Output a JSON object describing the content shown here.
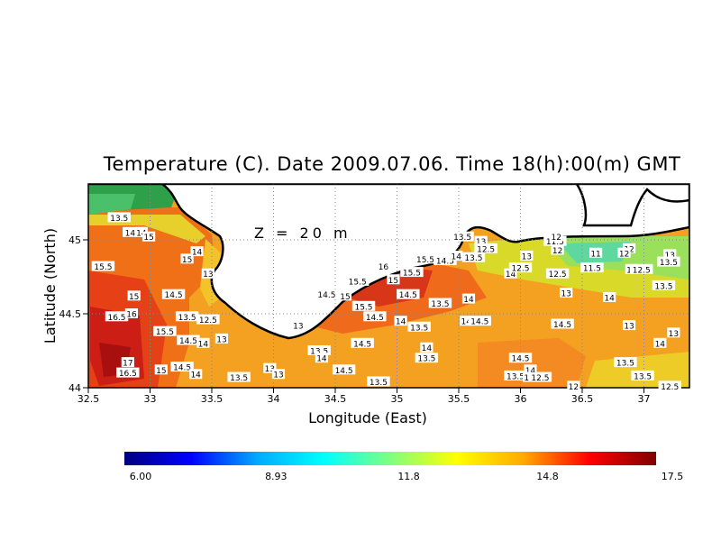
{
  "title": "Temperature (C). Date 2009.07.06. Time 18(h):00(m) GMT",
  "depth_label": "Z = 20 m",
  "axes": {
    "xlabel": "Longitude (East)",
    "ylabel": "Latitude (North)",
    "x_ticks": [
      "32.5",
      "33",
      "33.5",
      "34",
      "34.5",
      "35",
      "35.5",
      "36",
      "36.5",
      "37"
    ],
    "y_ticks": [
      "44",
      "44.5",
      "45"
    ]
  },
  "colorbar": {
    "min": 6.0,
    "max": 17.5,
    "labels": [
      "6.00",
      "8.93",
      "11.8",
      "14.8",
      "17.5"
    ],
    "colors": [
      "#00007f",
      "#0000ff",
      "#00aaff",
      "#00ffff",
      "#7fff7f",
      "#ffff00",
      "#ffaa00",
      "#ff0000",
      "#7f0000"
    ]
  },
  "contour_labels": [
    {
      "t": "13.5",
      "lon": 32.75,
      "lat": 45.15
    },
    {
      "t": "14.5",
      "lon": 32.87,
      "lat": 45.05
    },
    {
      "t": "14",
      "lon": 32.93,
      "lat": 45.05
    },
    {
      "t": "15",
      "lon": 32.99,
      "lat": 45.02
    },
    {
      "t": "15.5",
      "lon": 32.62,
      "lat": 44.82
    },
    {
      "t": "15",
      "lon": 33.3,
      "lat": 44.87
    },
    {
      "t": "14",
      "lon": 33.38,
      "lat": 44.92
    },
    {
      "t": "15",
      "lon": 32.87,
      "lat": 44.62
    },
    {
      "t": "16.5",
      "lon": 32.73,
      "lat": 44.48
    },
    {
      "t": "16",
      "lon": 32.85,
      "lat": 44.5
    },
    {
      "t": "14.5",
      "lon": 33.19,
      "lat": 44.63
    },
    {
      "t": "13.5",
      "lon": 33.3,
      "lat": 44.48
    },
    {
      "t": "12.5",
      "lon": 33.47,
      "lat": 44.46
    },
    {
      "t": "15.5",
      "lon": 33.12,
      "lat": 44.38
    },
    {
      "t": "14.5",
      "lon": 33.31,
      "lat": 44.32
    },
    {
      "t": "14",
      "lon": 33.43,
      "lat": 44.3
    },
    {
      "t": "13",
      "lon": 33.58,
      "lat": 44.33
    },
    {
      "t": "17",
      "lon": 32.82,
      "lat": 44.17
    },
    {
      "t": "16.5",
      "lon": 32.82,
      "lat": 44.1
    },
    {
      "t": "15",
      "lon": 33.09,
      "lat": 44.12
    },
    {
      "t": "14.5",
      "lon": 33.26,
      "lat": 44.14
    },
    {
      "t": "14",
      "lon": 33.37,
      "lat": 44.09
    },
    {
      "t": "13.5",
      "lon": 33.72,
      "lat": 44.07
    },
    {
      "t": "13",
      "lon": 33.97,
      "lat": 44.13
    },
    {
      "t": "13",
      "lon": 34.04,
      "lat": 44.09
    },
    {
      "t": "13",
      "lon": 33.47,
      "lat": 44.77
    },
    {
      "t": "13",
      "lon": 34.2,
      "lat": 44.42
    },
    {
      "t": "13.5",
      "lon": 34.37,
      "lat": 44.25
    },
    {
      "t": "14",
      "lon": 34.39,
      "lat": 44.2
    },
    {
      "t": "14.5",
      "lon": 34.57,
      "lat": 44.12
    },
    {
      "t": "13.5",
      "lon": 34.85,
      "lat": 44.04
    },
    {
      "t": "14.5",
      "lon": 34.43,
      "lat": 44.63
    },
    {
      "t": "15",
      "lon": 34.58,
      "lat": 44.62
    },
    {
      "t": "15.5",
      "lon": 34.68,
      "lat": 44.72
    },
    {
      "t": "16",
      "lon": 34.89,
      "lat": 44.82
    },
    {
      "t": "15.5",
      "lon": 34.73,
      "lat": 44.55
    },
    {
      "t": "14.5",
      "lon": 34.82,
      "lat": 44.48
    },
    {
      "t": "15",
      "lon": 34.97,
      "lat": 44.73
    },
    {
      "t": "14.5",
      "lon": 35.09,
      "lat": 44.63
    },
    {
      "t": "14",
      "lon": 35.03,
      "lat": 44.45
    },
    {
      "t": "13.5",
      "lon": 35.18,
      "lat": 44.41
    },
    {
      "t": "14.5",
      "lon": 34.72,
      "lat": 44.3
    },
    {
      "t": "15.5",
      "lon": 35.12,
      "lat": 44.78
    },
    {
      "t": "15.5",
      "lon": 35.23,
      "lat": 44.87
    },
    {
      "t": "14.5",
      "lon": 35.39,
      "lat": 44.86
    },
    {
      "t": "14",
      "lon": 35.48,
      "lat": 44.89
    },
    {
      "t": "13.5",
      "lon": 35.62,
      "lat": 44.88
    },
    {
      "t": "13.5",
      "lon": 35.35,
      "lat": 44.57
    },
    {
      "t": "14",
      "lon": 35.58,
      "lat": 44.6
    },
    {
      "t": "14",
      "lon": 35.56,
      "lat": 44.45
    },
    {
      "t": "14.5",
      "lon": 35.67,
      "lat": 44.45
    },
    {
      "t": "14",
      "lon": 35.24,
      "lat": 44.27
    },
    {
      "t": "13.5",
      "lon": 35.24,
      "lat": 44.2
    },
    {
      "t": "13.5",
      "lon": 35.53,
      "lat": 45.02
    },
    {
      "t": "13",
      "lon": 35.68,
      "lat": 44.99
    },
    {
      "t": "12.5",
      "lon": 35.72,
      "lat": 44.94
    },
    {
      "t": "13",
      "lon": 36.05,
      "lat": 44.89
    },
    {
      "t": "14",
      "lon": 35.92,
      "lat": 44.77
    },
    {
      "t": "12.5",
      "lon": 36.0,
      "lat": 44.81
    },
    {
      "t": "12.5",
      "lon": 36.3,
      "lat": 44.77
    },
    {
      "t": "13",
      "lon": 36.37,
      "lat": 44.64
    },
    {
      "t": "11.5",
      "lon": 36.28,
      "lat": 44.99
    },
    {
      "t": "12",
      "lon": 36.29,
      "lat": 45.02
    },
    {
      "t": "12",
      "lon": 36.3,
      "lat": 44.93
    },
    {
      "t": "11",
      "lon": 36.61,
      "lat": 44.91
    },
    {
      "t": "11.5",
      "lon": 36.58,
      "lat": 44.81
    },
    {
      "t": "12",
      "lon": 36.88,
      "lat": 44.94
    },
    {
      "t": "12",
      "lon": 36.84,
      "lat": 44.91
    },
    {
      "t": "11",
      "lon": 36.9,
      "lat": 44.8
    },
    {
      "t": "12.5",
      "lon": 36.98,
      "lat": 44.8
    },
    {
      "t": "13",
      "lon": 37.21,
      "lat": 44.9
    },
    {
      "t": "13.5",
      "lon": 37.2,
      "lat": 44.85
    },
    {
      "t": "13.5",
      "lon": 37.16,
      "lat": 44.69
    },
    {
      "t": "14",
      "lon": 36.72,
      "lat": 44.61
    },
    {
      "t": "13",
      "lon": 36.88,
      "lat": 44.42
    },
    {
      "t": "14.5",
      "lon": 36.34,
      "lat": 44.43
    },
    {
      "t": "14",
      "lon": 37.13,
      "lat": 44.3
    },
    {
      "t": "13",
      "lon": 37.24,
      "lat": 44.37
    },
    {
      "t": "14.5",
      "lon": 36.0,
      "lat": 44.2
    },
    {
      "t": "14",
      "lon": 36.08,
      "lat": 44.12
    },
    {
      "t": "13.5",
      "lon": 35.96,
      "lat": 44.08
    },
    {
      "t": "13",
      "lon": 36.07,
      "lat": 44.07
    },
    {
      "t": "12.5",
      "lon": 36.16,
      "lat": 44.07
    },
    {
      "t": "13.5",
      "lon": 36.85,
      "lat": 44.17
    },
    {
      "t": "13.5",
      "lon": 36.99,
      "lat": 44.08
    },
    {
      "t": "12.5",
      "lon": 37.21,
      "lat": 44.01
    },
    {
      "t": "12",
      "lon": 36.43,
      "lat": 44.01
    }
  ]
}
